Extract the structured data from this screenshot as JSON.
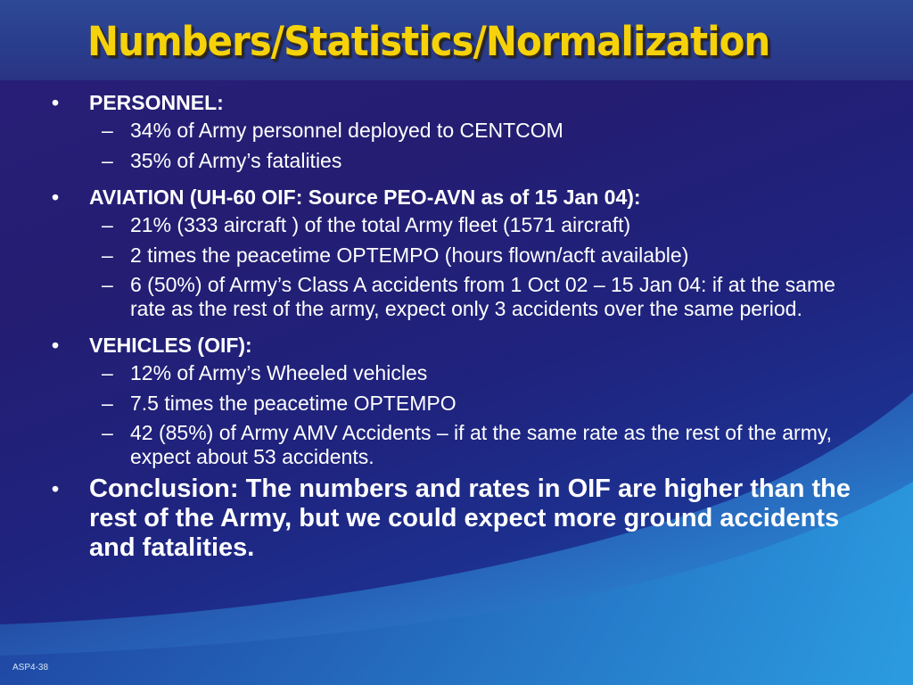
{
  "title": "Numbers/Statistics/Normalization",
  "bullet_char": "•",
  "dash_char": "–",
  "sections": [
    {
      "heading": "PERSONNEL:",
      "items": [
        "34% of Army personnel deployed to CENTCOM",
        "35% of Army’s fatalities"
      ]
    },
    {
      "heading": "AVIATION (UH-60 OIF: Source PEO-AVN as of 15 Jan 04):",
      "items": [
        "21% (333 aircraft ) of the total Army fleet (1571 aircraft)",
        "2 times the peacetime OPTEMPO (hours flown/acft available)",
        "6 (50%) of Army’s Class A accidents from 1 Oct 02 – 15 Jan 04: if at the same rate as the rest of the army, expect only 3 accidents over the same period."
      ]
    },
    {
      "heading": "VEHICLES (OIF):",
      "items": [
        "12% of Army’s Wheeled vehicles",
        "7.5 times the peacetime OPTEMPO",
        "42 (85%) of Army AMV Accidents – if at the same rate as the rest of the army, expect about 53 accidents."
      ]
    }
  ],
  "conclusion": "Conclusion: The numbers and rates in OIF are higher than the rest of the Army, but we could expect more ground accidents and fatalities.",
  "footer": "ASP4-38",
  "colors": {
    "title": "#f5d20a",
    "text": "#ffffff",
    "background": "#241d72",
    "wave": "#1b6cc4"
  }
}
